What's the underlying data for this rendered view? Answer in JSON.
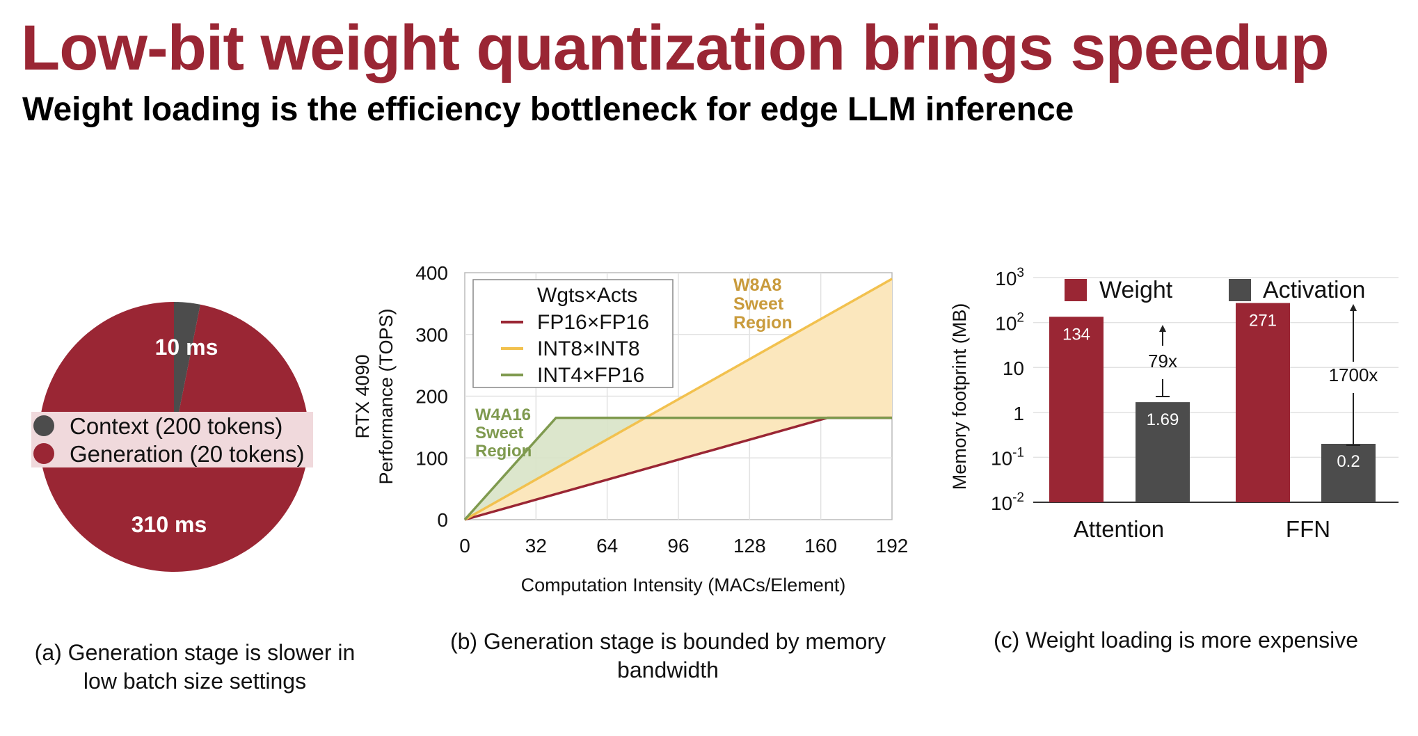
{
  "title": "Low-bit weight quantization brings speedup",
  "subtitle": "Weight loading is the efficiency bottleneck for edge LLM inference",
  "colors": {
    "accent": "#9a2634",
    "dark_gray": "#4c4c4c",
    "yellow": "#f2c14e",
    "green": "#7f9a4f",
    "yellow_fill": "#fbe7bd",
    "green_fill": "#d8e3c6",
    "w8a8_text": "#c99b3c"
  },
  "captions": {
    "a_line1": "(a) Generation stage is slower in",
    "a_line2": "low batch size settings",
    "b_line1": "(b) Generation stage is bounded by memory",
    "b_line2": "bandwidth",
    "c": "(c) Weight loading is more expensive"
  },
  "chart_data": [
    {
      "type": "pie",
      "slices": [
        {
          "label": "Context (200 tokens)",
          "value": 10,
          "value_label": "10 ms",
          "color": "#4c4c4c"
        },
        {
          "label": "Generation (20 tokens)",
          "value": 310,
          "value_label": "310 ms",
          "color": "#9a2634"
        }
      ],
      "legend": "center"
    },
    {
      "type": "line",
      "xlabel": "Computation Intensity (MACs/Element)",
      "ylabel_line1": "RTX 4090",
      "ylabel_line2": "Performance (TOPS)",
      "xlim": [
        0,
        192
      ],
      "ylim": [
        0,
        400
      ],
      "xticks": [
        0,
        32,
        64,
        96,
        128,
        160,
        192
      ],
      "yticks": [
        0,
        100,
        200,
        300,
        400
      ],
      "legend_title": "Wgts×Acts",
      "series": [
        {
          "name": "FP16×FP16",
          "color": "#9a2634",
          "points": [
            [
              0,
              0
            ],
            [
              163,
              165
            ],
            [
              192,
              165
            ]
          ]
        },
        {
          "name": "INT8×INT8",
          "color": "#f2c14e",
          "points": [
            [
              0,
              0
            ],
            [
              192,
              390
            ]
          ]
        },
        {
          "name": "INT4×FP16",
          "color": "#7f9a4f",
          "points": [
            [
              0,
              0
            ],
            [
              41,
              165
            ],
            [
              192,
              165
            ]
          ]
        }
      ],
      "regions": [
        {
          "label_line1": "W4A16",
          "label_line2": "Sweet",
          "label_line3": "Region"
        },
        {
          "label_line1": "W8A8",
          "label_line2": "Sweet",
          "label_line3": "Region"
        }
      ],
      "grid": true
    },
    {
      "type": "bar",
      "yscale": "log",
      "ylabel": "Memory footprint (MB)",
      "ytick_labels": [
        {
          "base": "10",
          "exp": "-2"
        },
        {
          "base": "10",
          "exp": "-1"
        },
        {
          "base": "1",
          "exp": ""
        },
        {
          "base": "10",
          "exp": ""
        },
        {
          "base": "10",
          "exp": "2"
        },
        {
          "base": "10",
          "exp": "3"
        }
      ],
      "categories": [
        "Attention",
        "FFN"
      ],
      "series": [
        {
          "name": "Weight",
          "color": "#9a2634",
          "values": [
            134,
            271
          ],
          "labels": [
            "134",
            "271"
          ]
        },
        {
          "name": "Activation",
          "color": "#4c4c4c",
          "values": [
            1.69,
            0.2
          ],
          "labels": [
            "1.69",
            "0.2"
          ]
        }
      ],
      "ratios": [
        "79x",
        "1700x"
      ],
      "legend": "top"
    }
  ]
}
